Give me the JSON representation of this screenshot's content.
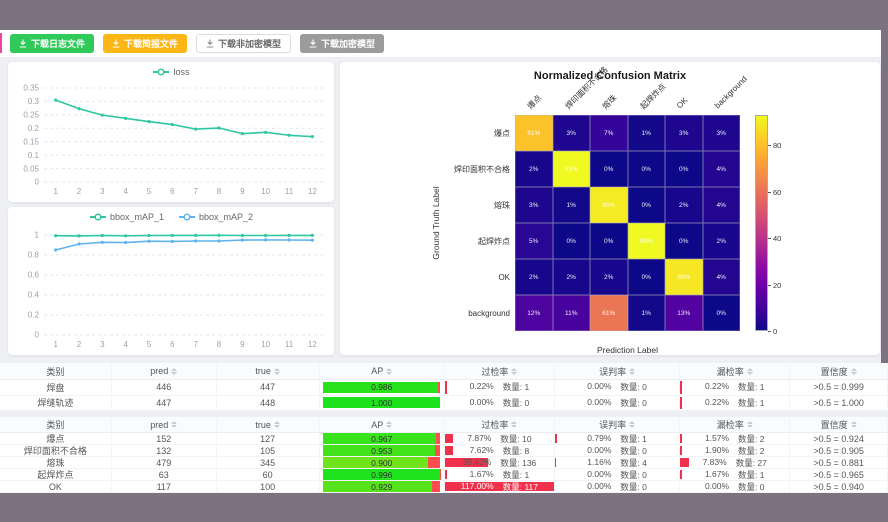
{
  "toolbar": {
    "buttons": [
      {
        "label": "下载日志文件",
        "variant": "green"
      },
      {
        "label": "下载简报文件",
        "variant": "orange"
      },
      {
        "label": "下载非加密模型",
        "variant": "white"
      },
      {
        "label": "下载加密模型",
        "variant": "gray"
      }
    ]
  },
  "chart_data": [
    {
      "type": "line",
      "id": "loss-chart",
      "x": [
        1,
        2,
        3,
        4,
        5,
        6,
        7,
        8,
        9,
        10,
        11,
        12
      ],
      "series": [
        {
          "name": "loss",
          "color": "#2ec7a2",
          "values": [
            0.305,
            0.273,
            0.249,
            0.237,
            0.225,
            0.214,
            0.197,
            0.201,
            0.18,
            0.185,
            0.174,
            0.169
          ]
        }
      ],
      "ylim": [
        0,
        0.35
      ],
      "yticks": [
        0,
        0.05,
        0.1,
        0.15,
        0.2,
        0.25,
        0.3,
        0.35
      ],
      "legend_position": "top",
      "grid": true
    },
    {
      "type": "line",
      "id": "bbox-map-chart",
      "x": [
        1,
        2,
        3,
        4,
        5,
        6,
        7,
        8,
        9,
        10,
        11,
        12
      ],
      "series": [
        {
          "name": "bbox_mAP_1",
          "color": "#2ec7a2",
          "values": [
            0.993,
            0.991,
            0.995,
            0.992,
            0.995,
            0.996,
            0.996,
            0.997,
            0.995,
            0.995,
            0.996,
            0.996
          ]
        },
        {
          "name": "bbox_mAP_2",
          "color": "#5fb3ef",
          "values": [
            0.85,
            0.91,
            0.927,
            0.925,
            0.938,
            0.936,
            0.94,
            0.94,
            0.949,
            0.951,
            0.95,
            0.948
          ]
        }
      ],
      "ylim": [
        0,
        1
      ],
      "yticks": [
        0,
        0.2,
        0.4,
        0.6,
        0.8,
        1
      ],
      "legend_position": "top",
      "grid": true
    },
    {
      "type": "heatmap",
      "id": "confusion-matrix",
      "title": "Normalized Confusion Matrix",
      "xlabel": "Prediction Label",
      "ylabel": "Ground Truth Label",
      "labels": [
        "爆点",
        "焊印面积不合格",
        "熔珠",
        "起焊炸点",
        "OK",
        "background"
      ],
      "matrix": [
        [
          81,
          3,
          7,
          1,
          3,
          3
        ],
        [
          2,
          93,
          0,
          0,
          0,
          4
        ],
        [
          3,
          1,
          90,
          0,
          2,
          4
        ],
        [
          5,
          0,
          0,
          93,
          0,
          2
        ],
        [
          2,
          2,
          2,
          0,
          89,
          4
        ],
        [
          12,
          11,
          61,
          1,
          13,
          0
        ]
      ],
      "unit": "%",
      "colormap": "plasma",
      "vmax": 93,
      "colorbar_ticks": [
        0,
        20,
        40,
        60,
        80
      ]
    }
  ],
  "tables": {
    "columns": [
      {
        "label": "类别",
        "sortable": false
      },
      {
        "label": "pred",
        "sortable": true
      },
      {
        "label": "true",
        "sortable": true
      },
      {
        "label": "AP",
        "sortable": true
      },
      {
        "label": "过检率",
        "sortable": true
      },
      {
        "label": "误判率",
        "sortable": true
      },
      {
        "label": "漏检率",
        "sortable": true
      },
      {
        "label": "置信度",
        "sortable": true
      }
    ],
    "col_widths": [
      12.6,
      11.8,
      11.6,
      14.1,
      12.4,
      14.1,
      12.4,
      11
    ],
    "groups": [
      {
        "rows": [
          {
            "category": "焊盘",
            "pred": "446",
            "true": "447",
            "ap": 0.986,
            "ap_label": "0.986",
            "over": {
              "pct": 0.22,
              "label": "0.22%",
              "count": "数量: 1"
            },
            "mis": {
              "pct": 0,
              "label": "0.00%",
              "count": "数量: 0"
            },
            "miss": {
              "pct": 0.22,
              "label": "0.22%",
              "count": "数量: 1"
            },
            "conf": ">0.5 = 0.999"
          },
          {
            "category": "焊缝轨迹",
            "pred": "447",
            "true": "448",
            "ap": 1.0,
            "ap_label": "1.000",
            "over": {
              "pct": 0,
              "label": "0.00%",
              "count": "数量: 0"
            },
            "mis": {
              "pct": 0,
              "label": "0.00%",
              "count": "数量: 0"
            },
            "miss": {
              "pct": 0.22,
              "label": "0.22%",
              "count": "数量: 1"
            },
            "conf": ">0.5 = 1.000"
          }
        ]
      },
      {
        "rows": [
          {
            "category": "爆点",
            "pred": "152",
            "true": "127",
            "ap": 0.967,
            "ap_label": "0.967",
            "over": {
              "pct": 7.87,
              "label": "7.87%",
              "count": "数量: 10"
            },
            "mis": {
              "pct": 0.79,
              "label": "0.79%",
              "count": "数量: 1"
            },
            "miss": {
              "pct": 1.57,
              "label": "1.57%",
              "count": "数量: 2"
            },
            "conf": ">0.5 = 0.924"
          },
          {
            "category": "焊印面积不合格",
            "pred": "132",
            "true": "105",
            "ap": 0.953,
            "ap_label": "0.953",
            "over": {
              "pct": 7.62,
              "label": "7.62%",
              "count": "数量: 8"
            },
            "mis": {
              "pct": 0,
              "label": "0.00%",
              "count": "数量: 0"
            },
            "miss": {
              "pct": 1.9,
              "label": "1.90%",
              "count": "数量: 2"
            },
            "conf": ">0.5 = 0.905"
          },
          {
            "category": "熔珠",
            "pred": "479",
            "true": "345",
            "ap": 0.9,
            "ap_label": "0.900",
            "over": {
              "pct": 39.42,
              "label": "39.42%",
              "count": "数量: 136"
            },
            "mis": {
              "pct": 1.16,
              "label": "1.16%",
              "count": "数量: 4"
            },
            "miss": {
              "pct": 7.83,
              "label": "7.83%",
              "count": "数量: 27"
            },
            "conf": ">0.5 = 0.881"
          },
          {
            "category": "起焊炸点",
            "pred": "63",
            "true": "60",
            "ap": 0.996,
            "ap_label": "0.996",
            "over": {
              "pct": 1.67,
              "label": "1.67%",
              "count": "数量: 1"
            },
            "mis": {
              "pct": 0,
              "label": "0.00%",
              "count": "数量: 0"
            },
            "miss": {
              "pct": 1.67,
              "label": "1.67%",
              "count": "数量: 1"
            },
            "conf": ">0.5 = 0.965"
          },
          {
            "category": "OK",
            "pred": "117",
            "true": "100",
            "ap": 0.929,
            "ap_label": "0.929",
            "over": {
              "pct": 117.0,
              "label": "117.00%",
              "count": "数量: 117"
            },
            "mis": {
              "pct": 0,
              "label": "0.00%",
              "count": "数量: 0"
            },
            "miss": {
              "pct": 0,
              "label": "0.00%",
              "count": "数量: 0"
            },
            "conf": ">0.5 = 0.940"
          }
        ]
      }
    ]
  }
}
